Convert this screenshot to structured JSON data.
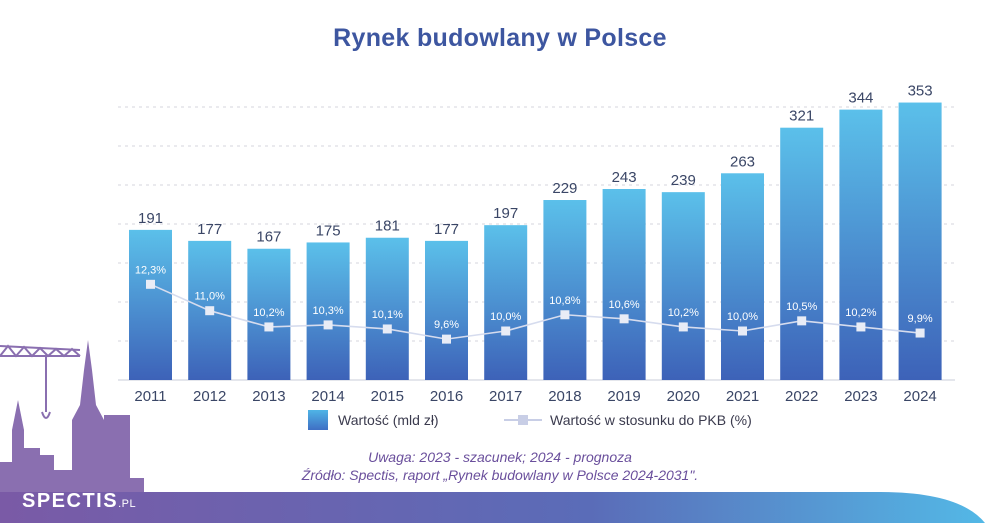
{
  "title": "Rynek budowlany w Polsce",
  "colors": {
    "bar_top": "#5bc0ea",
    "bar_bottom": "#3d62b8",
    "line": "#d6dcee",
    "title": "#3d56a0",
    "notes": "#6a4f9c",
    "footer_band": "#6a5aa8"
  },
  "legend": {
    "bar_label": "Wartość (mld zł)",
    "line_label": "Wartość w stosunku do PKB (%)"
  },
  "notes": {
    "line1": "Uwaga: 2023 - szacunek; 2024 - prognoza",
    "line2": "Źródło: Spectis, raport „Rynek budowlany w Polsce 2024-2031\"."
  },
  "logo": {
    "name": "SPECTIS",
    "suffix": ".PL"
  },
  "chart_data": {
    "type": "bar",
    "categories": [
      "2011",
      "2012",
      "2013",
      "2014",
      "2015",
      "2016",
      "2017",
      "2018",
      "2019",
      "2020",
      "2021",
      "2022",
      "2023",
      "2024"
    ],
    "series": [
      {
        "name": "Wartość (mld zł)",
        "type": "bar",
        "values": [
          191,
          177,
          167,
          175,
          181,
          177,
          197,
          229,
          243,
          239,
          263,
          321,
          344,
          353
        ],
        "labels": [
          "191",
          "177",
          "167",
          "175",
          "181",
          "177",
          "197",
          "229",
          "243",
          "239",
          "263",
          "321",
          "344",
          "353"
        ]
      },
      {
        "name": "Wartość w stosunku do PKB (%)",
        "type": "line",
        "values": [
          12.3,
          11.0,
          10.2,
          10.3,
          10.1,
          9.6,
          10.0,
          10.8,
          10.6,
          10.2,
          10.0,
          10.5,
          10.2,
          9.9
        ],
        "labels": [
          "12,3%",
          "11,0%",
          "10,2%",
          "10,3%",
          "10,1%",
          "9,6%",
          "10,0%",
          "10,8%",
          "10,6%",
          "10,2%",
          "10,0%",
          "10,5%",
          "10,2%",
          "9,9%"
        ]
      }
    ],
    "ylim": [
      0,
      360
    ],
    "grid": true,
    "legend_position": "bottom"
  }
}
